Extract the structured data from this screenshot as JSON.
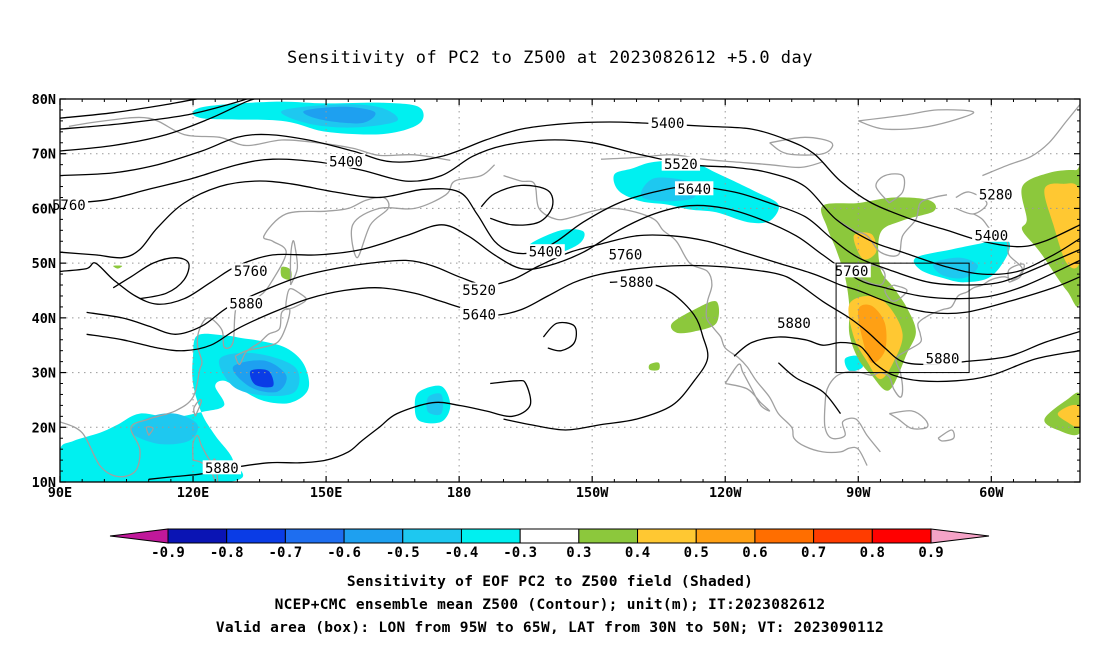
{
  "title": "Sensitivity of PC2 to Z500 at 2023082612 +5.0 day",
  "captions": {
    "line1": "Sensitivity of EOF PC2 to Z500 field (Shaded)",
    "line2": "NCEP+CMC ensemble mean Z500 (Contour); unit(m); IT:2023082612",
    "line3": "Valid area (box): LON from 95W to 65W, LAT from 30N to 50N; VT: 2023090112"
  },
  "map": {
    "lon_range_east": [
      90,
      320
    ],
    "lat_range": [
      10,
      80
    ],
    "lat_ticks": [
      {
        "lat": 80,
        "label": "80N"
      },
      {
        "lat": 70,
        "label": "70N"
      },
      {
        "lat": 60,
        "label": "60N"
      },
      {
        "lat": 50,
        "label": "50N"
      },
      {
        "lat": 40,
        "label": "40N"
      },
      {
        "lat": 30,
        "label": "30N"
      },
      {
        "lat": 20,
        "label": "20N"
      },
      {
        "lat": 10,
        "label": "10N"
      }
    ],
    "lon_ticks": [
      {
        "lon": 90,
        "label": "90E"
      },
      {
        "lon": 120,
        "label": "120E"
      },
      {
        "lon": 150,
        "label": "150E"
      },
      {
        "lon": 180,
        "label": "180"
      },
      {
        "lon": 210,
        "label": "150W"
      },
      {
        "lon": 240,
        "label": "120W"
      },
      {
        "lon": 270,
        "label": "90W"
      },
      {
        "lon": 300,
        "label": "60W"
      }
    ],
    "valid_box": {
      "lon_west": 265,
      "lon_east": 295,
      "lat_south": 30,
      "lat_north": 50
    },
    "contour_labels": [
      {
        "text": "5400",
        "lon": 227,
        "lat": 75.5
      },
      {
        "text": "5520",
        "lon": 230,
        "lat": 68
      },
      {
        "text": "5640",
        "lon": 233,
        "lat": 63.5
      },
      {
        "text": "5280",
        "lon": 301,
        "lat": 62.5
      },
      {
        "text": "5400",
        "lon": 300,
        "lat": 55
      },
      {
        "text": "5400",
        "lon": 154.5,
        "lat": 68.5
      },
      {
        "text": "5400",
        "lon": 199.5,
        "lat": 52
      },
      {
        "text": "5760",
        "lon": 217.5,
        "lat": 51.5
      },
      {
        "text": "5880",
        "lon": 220,
        "lat": 46.5
      },
      {
        "text": "5760",
        "lon": 92,
        "lat": 60.5
      },
      {
        "text": "5760",
        "lon": 133,
        "lat": 48.5
      },
      {
        "text": "5880",
        "lon": 132,
        "lat": 42.5
      },
      {
        "text": "5520",
        "lon": 184.5,
        "lat": 45
      },
      {
        "text": "5640",
        "lon": 184.5,
        "lat": 40.5
      },
      {
        "text": "5760",
        "lon": 268.5,
        "lat": 48.5
      },
      {
        "text": "5880",
        "lon": 255.5,
        "lat": 39
      },
      {
        "text": "5880",
        "lon": 289,
        "lat": 32.5
      },
      {
        "text": "5880",
        "lon": 126.5,
        "lat": 12.5
      }
    ]
  },
  "colorbar": {
    "labels": [
      "-0.9",
      "-0.8",
      "-0.7",
      "-0.6",
      "-0.5",
      "-0.4",
      "-0.3",
      "0.3",
      "0.4",
      "0.5",
      "0.6",
      "0.7",
      "0.8",
      "0.9"
    ],
    "left_arrow_color": "#c0189a",
    "right_arrow_color": "#f5a3c7",
    "colors": [
      "#0a14b4",
      "#0a3ce6",
      "#1e6ef0",
      "#1ea0f0",
      "#1ec8f0",
      "#00f0f0",
      "#ffffff",
      "#8cc83c",
      "#ffc832",
      "#ffa014",
      "#ff6e00",
      "#ff3c00",
      "#ff0000"
    ]
  },
  "colors": {
    "land_outline": "#a0a0a0",
    "contour": "#000000",
    "grid": "#999999",
    "neg_weak": "#00f0f0",
    "neg_mid": "#1ec8f0",
    "neg_strong": "#1ea0f0",
    "neg_max": "#0a3ce6",
    "pos_weak": "#8cc83c",
    "pos_mid": "#ffc832",
    "pos_strong": "#ffa014"
  }
}
